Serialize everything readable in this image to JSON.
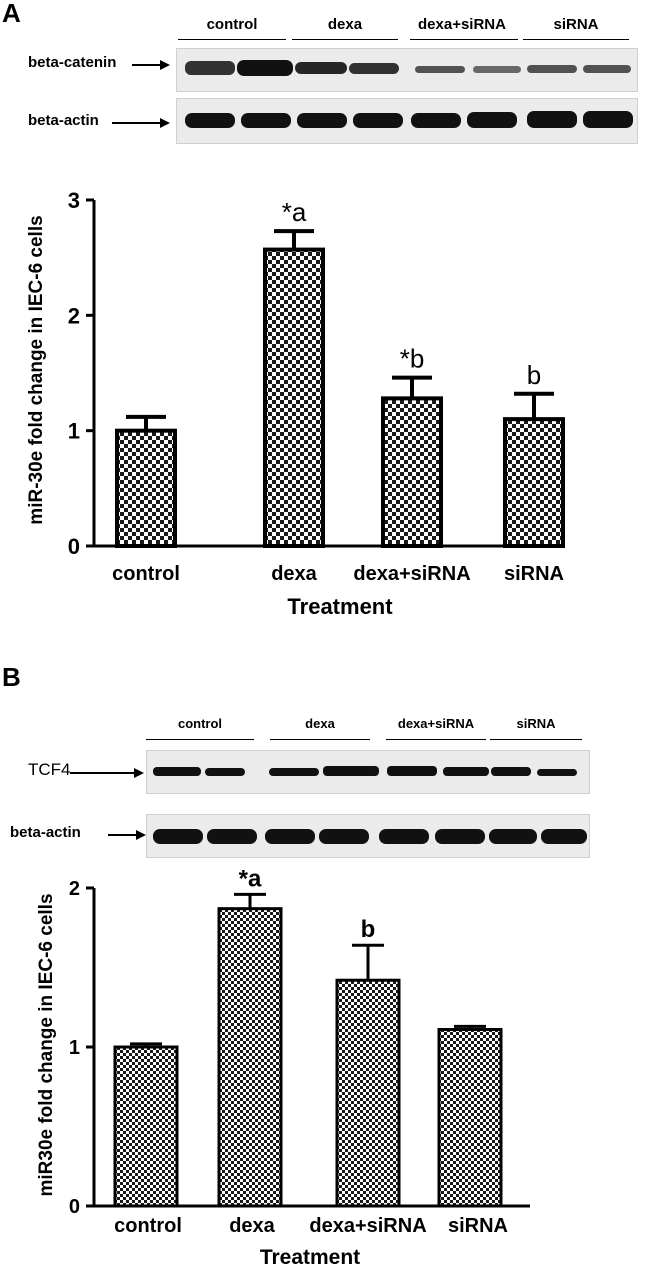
{
  "panel_a": {
    "letter": "A",
    "lanes": [
      "control",
      "dexa",
      "dexa+siRNA",
      "siRNA"
    ],
    "blot_labels": [
      "beta-catenin",
      "beta-actin"
    ]
  },
  "panel_b": {
    "letter": "B",
    "lanes": [
      "control",
      "dexa",
      "dexa+siRNA",
      "siRNA"
    ],
    "blot_labels": [
      "TCF4",
      "beta-actin"
    ]
  },
  "chart_data": [
    {
      "type": "bar",
      "categories": [
        "control",
        "dexa",
        "dexa+siRNA",
        "siRNA"
      ],
      "values": [
        1.0,
        2.57,
        1.28,
        1.1
      ],
      "errors": [
        0.12,
        0.16,
        0.18,
        0.22
      ],
      "annotations": [
        "",
        "*a",
        "*b",
        "b"
      ],
      "title": "",
      "xlabel": "Treatment",
      "ylabel": "miR-30e fold change in IEC-6 cells",
      "ylim": [
        0,
        3
      ],
      "yticks": [
        0,
        1,
        2,
        3
      ],
      "grid": false,
      "fill": "checkered"
    },
    {
      "type": "bar",
      "categories": [
        "control",
        "dexa",
        "dexa+siRNA",
        "siRNA"
      ],
      "values": [
        1.0,
        1.87,
        1.42,
        1.11
      ],
      "errors": [
        0.02,
        0.09,
        0.22,
        0.02
      ],
      "annotations": [
        "",
        "*a",
        "b",
        ""
      ],
      "title": "",
      "xlabel": "Treatment",
      "ylabel": "miR30e fold change in IEC-6 cells",
      "ylim": [
        0,
        2
      ],
      "yticks": [
        0,
        1,
        2
      ],
      "grid": false,
      "fill": "checkered"
    }
  ]
}
